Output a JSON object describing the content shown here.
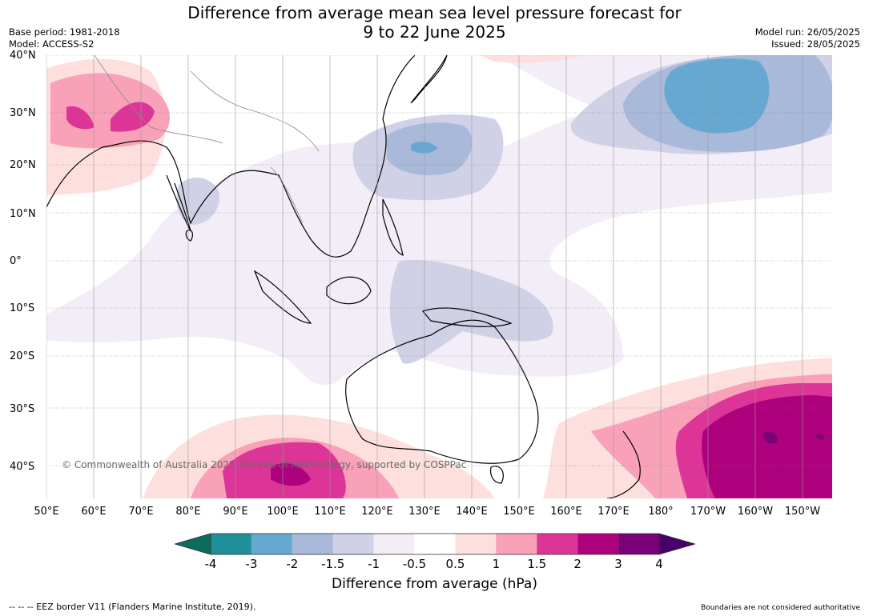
{
  "title_line1": "Difference from average mean sea level pressure forecast for",
  "title_line2": "9 to 22 June 2025",
  "base_period": "Base period: 1981-2018",
  "model": "Model: ACCESS-S2",
  "model_run": "Model run: 26/05/2025",
  "issued": "Issued: 28/05/2025",
  "copyright": "© Commonwealth of Australia 2025, Bureau of Meteorology, supported by COSPPac",
  "lat_labels": [
    "40°N",
    "30°N",
    "20°N",
    "10°N",
    "0°",
    "10°S",
    "20°S",
    "30°S",
    "40°S"
  ],
  "lon_labels": [
    "50°E",
    "60°E",
    "70°E",
    "80°E",
    "90°E",
    "100°E",
    "110°E",
    "120°E",
    "130°E",
    "140°E",
    "150°E",
    "160°E",
    "170°E",
    "180°",
    "170°W",
    "160°W",
    "150°W"
  ],
  "colorbar": {
    "ticks": [
      "-4",
      "-3",
      "-2",
      "-1.5",
      "-1",
      "-0.5",
      "0.5",
      "1",
      "1.5",
      "2",
      "3",
      "4"
    ],
    "colors": [
      "#0b6b5e",
      "#1f8f99",
      "#66a8d1",
      "#a8b9d9",
      "#d0d1e6",
      "#f2edf6",
      "#ffffff",
      "#fde0de",
      "#f8a1b8",
      "#dd3497",
      "#ae017e",
      "#7a0177",
      "#49006a"
    ],
    "title": "Difference from average (hPa)"
  },
  "footer_left": "--  --  -- EEZ border V11 (Flanders Marine Institute, 2019).",
  "footer_right": "Boundaries are not considered authoritative"
}
